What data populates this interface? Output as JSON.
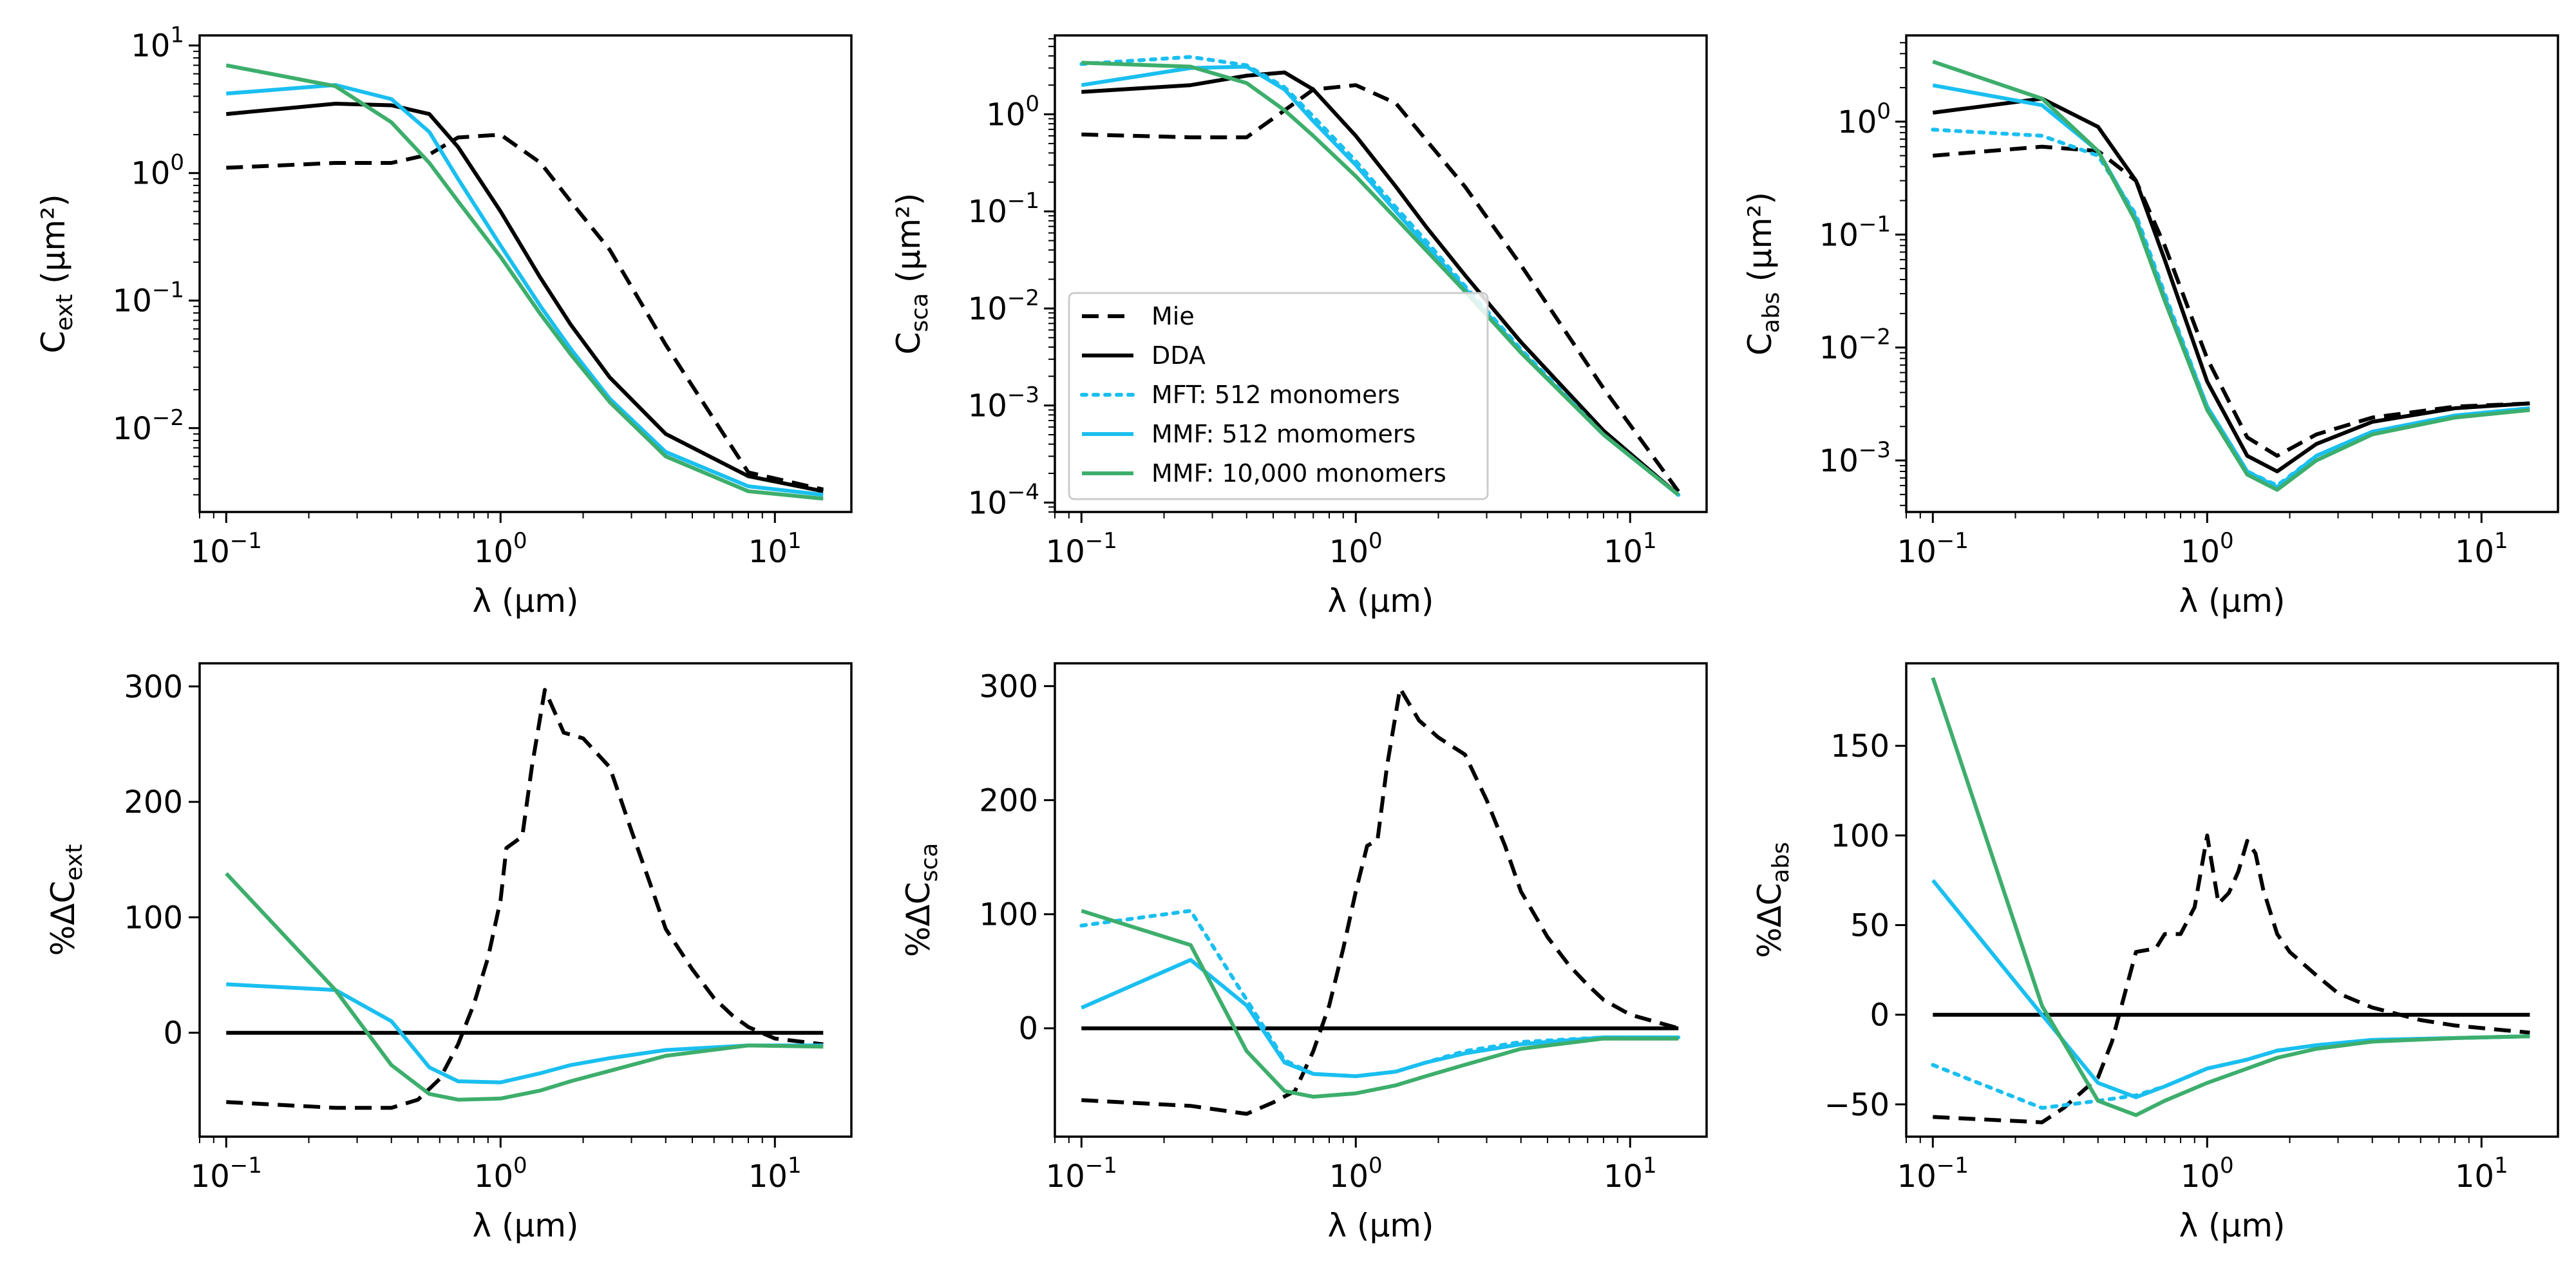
{
  "x": [
    0.1,
    0.25,
    0.4,
    0.55,
    0.7,
    1.0,
    1.4,
    1.8,
    2.5,
    4.0,
    8.0,
    15.0
  ],
  "legend": [
    {
      "label": "Mie",
      "color": "#000000",
      "dash": "dashed"
    },
    {
      "label": "DDA",
      "color": "#000000",
      "dash": "solid"
    },
    {
      "label": "MFT: 512 monomers",
      "color": "#1ABFF0",
      "dash": "dotted"
    },
    {
      "label": "MMF: 512 momomers",
      "color": "#1ABFF0",
      "dash": "solid"
    },
    {
      "label": "MMF: 10,000 monomers",
      "color": "#3DAE6C",
      "dash": "solid"
    }
  ],
  "chart_data": [
    {
      "id": "ext",
      "type": "line",
      "yscale": "log",
      "xlabel": "λ (μm)",
      "ylabel_base": "C",
      "ylabel_sub": "ext",
      "ylabel_unit": " (μm²)",
      "xlim": [
        0.08,
        19.0
      ],
      "ylim": [
        0.0022,
        12.0
      ],
      "xticks": [
        {
          "value": 0.1,
          "base": "10",
          "exp": "−1"
        },
        {
          "value": 1,
          "base": "10",
          "exp": "0"
        },
        {
          "value": 10,
          "base": "10",
          "exp": "1"
        }
      ],
      "yticks": [
        {
          "value": 0.01,
          "base": "10",
          "exp": "−2"
        },
        {
          "value": 0.1,
          "base": "10",
          "exp": "−1"
        },
        {
          "value": 1,
          "base": "10",
          "exp": "0"
        },
        {
          "value": 10,
          "base": "10",
          "exp": "1"
        }
      ],
      "series": [
        {
          "name": "Mie",
          "values": [
            1.1,
            1.2,
            1.2,
            1.4,
            1.9,
            2.0,
            1.2,
            0.6,
            0.25,
            0.045,
            0.0045,
            0.0033
          ]
        },
        {
          "name": "DDA",
          "values": [
            2.9,
            3.5,
            3.4,
            2.9,
            1.6,
            0.5,
            0.15,
            0.065,
            0.025,
            0.009,
            0.0042,
            0.0032
          ]
        },
        {
          "name": "MMF: 512 momomers",
          "values": [
            4.2,
            4.9,
            3.8,
            2.1,
            0.9,
            0.27,
            0.09,
            0.042,
            0.017,
            0.0065,
            0.0035,
            0.003
          ]
        },
        {
          "name": "MMF: 10,000 monomers",
          "values": [
            7.0,
            4.8,
            2.5,
            1.2,
            0.6,
            0.22,
            0.078,
            0.038,
            0.016,
            0.006,
            0.0032,
            0.0028
          ]
        }
      ]
    },
    {
      "id": "sca",
      "type": "line",
      "yscale": "log",
      "xlabel": "λ (μm)",
      "ylabel_base": "C",
      "ylabel_sub": "sca",
      "ylabel_unit": " (μm²)",
      "xlim": [
        0.08,
        19.0
      ],
      "ylim": [
        8e-05,
        6.5
      ],
      "xticks": [
        {
          "value": 0.1,
          "base": "10",
          "exp": "−1"
        },
        {
          "value": 1,
          "base": "10",
          "exp": "0"
        },
        {
          "value": 10,
          "base": "10",
          "exp": "1"
        }
      ],
      "yticks": [
        {
          "value": 0.0001,
          "base": "10",
          "exp": "−4"
        },
        {
          "value": 0.001,
          "base": "10",
          "exp": "−3"
        },
        {
          "value": 0.01,
          "base": "10",
          "exp": "−2"
        },
        {
          "value": 0.1,
          "base": "10",
          "exp": "−1"
        },
        {
          "value": 1,
          "base": "10",
          "exp": "0"
        }
      ],
      "series": [
        {
          "name": "Mie",
          "values": [
            0.62,
            0.58,
            0.58,
            1.1,
            1.8,
            2.0,
            1.3,
            0.55,
            0.18,
            0.028,
            0.0015,
            0.00013
          ]
        },
        {
          "name": "DDA",
          "values": [
            1.7,
            2.0,
            2.5,
            2.7,
            1.8,
            0.6,
            0.18,
            0.07,
            0.022,
            0.0045,
            0.00055,
            0.00012
          ]
        },
        {
          "name": "MFT: 512 monomers",
          "values": [
            3.3,
            3.9,
            3.2,
            1.9,
            0.95,
            0.33,
            0.11,
            0.05,
            0.017,
            0.0038,
            0.0005,
            0.00012
          ]
        },
        {
          "name": "MMF: 512 momomers",
          "values": [
            2.0,
            3.0,
            3.1,
            1.8,
            0.85,
            0.3,
            0.1,
            0.045,
            0.016,
            0.0036,
            0.0005,
            0.00012
          ]
        },
        {
          "name": "MMF: 10,000 monomers",
          "values": [
            3.4,
            3.1,
            2.1,
            1.1,
            0.6,
            0.23,
            0.085,
            0.04,
            0.015,
            0.0035,
            0.0005,
            0.00012
          ]
        }
      ]
    },
    {
      "id": "abs",
      "type": "line",
      "yscale": "log",
      "xlabel": "λ (μm)",
      "ylabel_base": "C",
      "ylabel_sub": "abs",
      "ylabel_unit": " (μm²)",
      "xlim": [
        0.08,
        19.0
      ],
      "ylim": [
        0.00035,
        5.8
      ],
      "xticks": [
        {
          "value": 0.1,
          "base": "10",
          "exp": "−1"
        },
        {
          "value": 1,
          "base": "10",
          "exp": "0"
        },
        {
          "value": 10,
          "base": "10",
          "exp": "1"
        }
      ],
      "yticks": [
        {
          "value": 0.001,
          "base": "10",
          "exp": "−3"
        },
        {
          "value": 0.01,
          "base": "10",
          "exp": "−2"
        },
        {
          "value": 0.1,
          "base": "10",
          "exp": "−1"
        },
        {
          "value": 1,
          "base": "10",
          "exp": "0"
        }
      ],
      "series": [
        {
          "name": "Mie",
          "values": [
            0.5,
            0.6,
            0.55,
            0.3,
            0.08,
            0.008,
            0.0016,
            0.0011,
            0.0017,
            0.0024,
            0.003,
            0.0032
          ]
        },
        {
          "name": "DDA",
          "values": [
            1.2,
            1.6,
            0.9,
            0.3,
            0.06,
            0.005,
            0.0011,
            0.0008,
            0.0014,
            0.0022,
            0.0029,
            0.0032
          ]
        },
        {
          "name": "MFT: 512 monomers",
          "values": [
            0.85,
            0.75,
            0.5,
            0.15,
            0.03,
            0.003,
            0.0008,
            0.0006,
            0.0011,
            0.0018,
            0.0025,
            0.0029
          ]
        },
        {
          "name": "MMF: 512 momomers",
          "values": [
            2.1,
            1.4,
            0.55,
            0.14,
            0.028,
            0.003,
            0.0008,
            0.00058,
            0.0011,
            0.0018,
            0.0025,
            0.0029
          ]
        },
        {
          "name": "MMF: 10,000 monomers",
          "values": [
            3.4,
            1.6,
            0.55,
            0.13,
            0.026,
            0.0028,
            0.00075,
            0.00055,
            0.001,
            0.0017,
            0.0024,
            0.0028
          ]
        }
      ]
    },
    {
      "id": "dext",
      "type": "line",
      "yscale": "linear",
      "xlabel": "λ (μm)",
      "ylabel_base": "%ΔC",
      "ylabel_sub": "ext",
      "ylabel_unit": "",
      "xlim": [
        0.08,
        19.0
      ],
      "ylim": [
        -90,
        320
      ],
      "xticks": [
        {
          "value": 0.1,
          "base": "10",
          "exp": "−1"
        },
        {
          "value": 1,
          "base": "10",
          "exp": "0"
        },
        {
          "value": 10,
          "base": "10",
          "exp": "1"
        }
      ],
      "yticks": [
        {
          "value": 0,
          "label": "0"
        },
        {
          "value": 100,
          "label": "100"
        },
        {
          "value": 200,
          "label": "200"
        },
        {
          "value": 300,
          "label": "300"
        }
      ],
      "series": [
        {
          "name": "Mie",
          "x": [
            0.1,
            0.25,
            0.4,
            0.5,
            0.6,
            0.7,
            0.8,
            0.9,
            1.0,
            1.05,
            1.2,
            1.3,
            1.45,
            1.7,
            2.0,
            2.5,
            3.0,
            3.5,
            4.0,
            5.0,
            6.0,
            7.0,
            8.0,
            10.0,
            15.0
          ],
          "values": [
            -60,
            -65,
            -65,
            -58,
            -40,
            -10,
            25,
            65,
            115,
            160,
            170,
            230,
            297,
            260,
            255,
            230,
            175,
            130,
            90,
            55,
            30,
            15,
            5,
            -5,
            -10
          ]
        },
        {
          "name": "DDA",
          "values": [
            0,
            0,
            0,
            0,
            0,
            0,
            0,
            0,
            0,
            0,
            0,
            0
          ]
        },
        {
          "name": "MMF: 512 momomers",
          "values": [
            42,
            37,
            10,
            -30,
            -42,
            -43,
            -35,
            -28,
            -22,
            -15,
            -11,
            -11
          ]
        },
        {
          "name": "MMF: 10,000 monomers",
          "values": [
            138,
            37,
            -28,
            -53,
            -58,
            -57,
            -50,
            -42,
            -33,
            -20,
            -11,
            -12
          ]
        }
      ]
    },
    {
      "id": "dsca",
      "type": "line",
      "yscale": "linear",
      "xlabel": "λ (μm)",
      "ylabel_base": "%ΔC",
      "ylabel_sub": "sca",
      "ylabel_unit": "",
      "xlim": [
        0.08,
        19.0
      ],
      "ylim": [
        -95,
        320
      ],
      "xticks": [
        {
          "value": 0.1,
          "base": "10",
          "exp": "−1"
        },
        {
          "value": 1,
          "base": "10",
          "exp": "0"
        },
        {
          "value": 10,
          "base": "10",
          "exp": "1"
        }
      ],
      "yticks": [
        {
          "value": 0,
          "label": "0"
        },
        {
          "value": 100,
          "label": "100"
        },
        {
          "value": 200,
          "label": "200"
        },
        {
          "value": 300,
          "label": "300"
        }
      ],
      "series": [
        {
          "name": "Mie",
          "x": [
            0.1,
            0.25,
            0.4,
            0.5,
            0.6,
            0.7,
            0.8,
            0.9,
            1.0,
            1.1,
            1.2,
            1.3,
            1.45,
            1.7,
            2.0,
            2.5,
            3.0,
            3.5,
            4.0,
            5.0,
            6.0,
            7.0,
            8.0,
            10.0,
            15.0
          ],
          "values": [
            -63,
            -68,
            -75,
            -65,
            -55,
            -20,
            20,
            70,
            120,
            160,
            165,
            230,
            298,
            270,
            255,
            240,
            200,
            160,
            120,
            80,
            55,
            38,
            25,
            12,
            0
          ]
        },
        {
          "name": "DDA",
          "values": [
            0,
            0,
            0,
            0,
            0,
            0,
            0,
            0,
            0,
            0,
            0,
            0
          ]
        },
        {
          "name": "MFT: 512 monomers",
          "values": [
            90,
            103,
            25,
            -28,
            -40,
            -42,
            -38,
            -30,
            -20,
            -12,
            -8,
            -8
          ]
        },
        {
          "name": "MMF: 512 momomers",
          "values": [
            18,
            60,
            20,
            -30,
            -40,
            -42,
            -38,
            -30,
            -22,
            -14,
            -8,
            -8
          ]
        },
        {
          "name": "MMF: 10,000 monomers",
          "values": [
            103,
            73,
            -20,
            -55,
            -60,
            -57,
            -50,
            -42,
            -32,
            -18,
            -9,
            -9
          ]
        }
      ]
    },
    {
      "id": "dabs",
      "type": "line",
      "yscale": "linear",
      "xlabel": "λ (μm)",
      "ylabel_base": "%ΔC",
      "ylabel_sub": "abs",
      "ylabel_unit": "",
      "xlim": [
        0.08,
        19.0
      ],
      "ylim": [
        -68,
        196
      ],
      "xticks": [
        {
          "value": 0.1,
          "base": "10",
          "exp": "−1"
        },
        {
          "value": 1,
          "base": "10",
          "exp": "0"
        },
        {
          "value": 10,
          "base": "10",
          "exp": "1"
        }
      ],
      "yticks": [
        {
          "value": -50,
          "label": "−50"
        },
        {
          "value": 0,
          "label": "0"
        },
        {
          "value": 50,
          "label": "50"
        },
        {
          "value": 100,
          "label": "100"
        },
        {
          "value": 150,
          "label": "150"
        }
      ],
      "series": [
        {
          "name": "Mie",
          "x": [
            0.1,
            0.25,
            0.3,
            0.4,
            0.45,
            0.55,
            0.65,
            0.7,
            0.8,
            0.9,
            1.0,
            1.1,
            1.2,
            1.3,
            1.4,
            1.5,
            1.6,
            1.8,
            2.0,
            2.5,
            3.0,
            4.0,
            6.0,
            8.0,
            15.0
          ],
          "values": [
            -57,
            -60,
            -52,
            -35,
            -15,
            35,
            37,
            45,
            45,
            60,
            100,
            62,
            68,
            80,
            97,
            90,
            70,
            45,
            35,
            22,
            12,
            4,
            -3,
            -6,
            -10
          ]
        },
        {
          "name": "DDA",
          "values": [
            0,
            0,
            0,
            0,
            0,
            0,
            0,
            0,
            0,
            0,
            0,
            0
          ]
        },
        {
          "name": "MFT: 512 monomers",
          "values": [
            -28,
            -52,
            -48,
            -45,
            -40,
            -30,
            -25,
            -20,
            -17,
            -14,
            -13,
            -12
          ]
        },
        {
          "name": "MMF: 512 momomers",
          "values": [
            75,
            0,
            -38,
            -46,
            -40,
            -30,
            -25,
            -20,
            -17,
            -14,
            -13,
            -12
          ]
        },
        {
          "name": "MMF: 10,000 monomers",
          "values": [
            188,
            5,
            -48,
            -56,
            -48,
            -38,
            -30,
            -24,
            -19,
            -15,
            -13,
            -12
          ]
        }
      ]
    }
  ]
}
